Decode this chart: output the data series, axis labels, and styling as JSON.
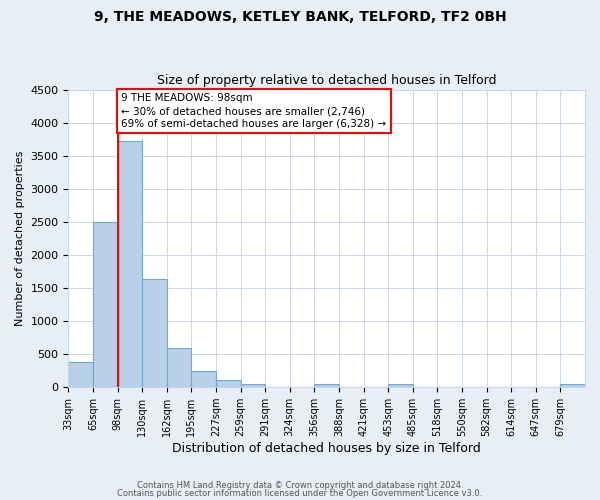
{
  "title1": "9, THE MEADOWS, KETLEY BANK, TELFORD, TF2 0BH",
  "title2": "Size of property relative to detached houses in Telford",
  "xlabel": "Distribution of detached houses by size in Telford",
  "ylabel": "Number of detached properties",
  "bin_labels": [
    "33sqm",
    "65sqm",
    "98sqm",
    "130sqm",
    "162sqm",
    "195sqm",
    "227sqm",
    "259sqm",
    "291sqm",
    "324sqm",
    "356sqm",
    "388sqm",
    "421sqm",
    "453sqm",
    "485sqm",
    "518sqm",
    "550sqm",
    "582sqm",
    "614sqm",
    "647sqm",
    "679sqm"
  ],
  "bar_values": [
    375,
    2500,
    3725,
    1630,
    590,
    240,
    110,
    55,
    0,
    0,
    50,
    0,
    0,
    50,
    0,
    0,
    0,
    0,
    0,
    0,
    50
  ],
  "bar_color": "#b8d0e8",
  "bar_edge_color": "#6aaad4",
  "marker_line_color": "red",
  "marker_idx": 2,
  "ylim": [
    0,
    4500
  ],
  "yticks": [
    0,
    500,
    1000,
    1500,
    2000,
    2500,
    3000,
    3500,
    4000,
    4500
  ],
  "annotation_text": "9 THE MEADOWS: 98sqm\n← 30% of detached houses are smaller (2,746)\n69% of semi-detached houses are larger (6,328) →",
  "annotation_box_color": "white",
  "annotation_box_edge_color": "red",
  "footer1": "Contains HM Land Registry data © Crown copyright and database right 2024.",
  "footer2": "Contains public sector information licensed under the Open Government Licence v3.0.",
  "background_color": "#e8eef5",
  "plot_background_color": "#ffffff",
  "grid_color": "#c8d8e8"
}
